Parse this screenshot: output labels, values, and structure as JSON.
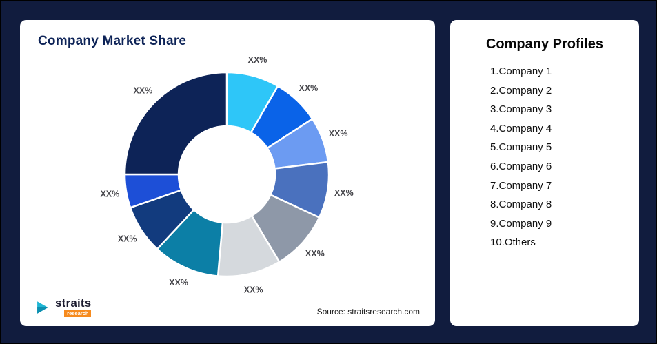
{
  "page": {
    "background_color": "#111c3e"
  },
  "left_card": {
    "title": "Company Market Share",
    "source": "Source: straitsresearch.com",
    "logo": {
      "name": "straits",
      "sub": "research",
      "mark_color": "#1fb6d4",
      "sub_bg": "#f68b1f"
    }
  },
  "right_card": {
    "title": "Company Profiles",
    "items": [
      "1.Company 1",
      "2.Company 2",
      "3.Company 3",
      "4.Company 4",
      "5.Company 5",
      "6.Company 6",
      "7.Company 7",
      "8.Company 8",
      "9.Company 9",
      "10.Others"
    ]
  },
  "chart_data": {
    "type": "pie",
    "subtype": "donut",
    "title": "Company Market Share",
    "value_label_placeholder": "XX%",
    "note": "All slice values shown as XX% placeholders; angles estimated from pixels, clockwise from 12 o'clock",
    "segments": [
      {
        "label": "XX%",
        "angle_deg": 30,
        "color": "#2ec6f8"
      },
      {
        "label": "XX%",
        "angle_deg": 27,
        "color": "#0a63e8"
      },
      {
        "label": "XX%",
        "angle_deg": 26,
        "color": "#6c9bf2"
      },
      {
        "label": "XX%",
        "angle_deg": 32,
        "color": "#4a71be"
      },
      {
        "label": "XX%",
        "angle_deg": 34,
        "color": "#8e98a8"
      },
      {
        "label": "XX%",
        "angle_deg": 36,
        "color": "#d5d9dd"
      },
      {
        "label": "XX%",
        "angle_deg": 38,
        "color": "#0c7fa6"
      },
      {
        "label": "XX%",
        "angle_deg": 28,
        "color": "#123b7e"
      },
      {
        "label": "XX%",
        "angle_deg": 19,
        "color": "#1d4fd7"
      },
      {
        "label": "XX%",
        "angle_deg": 90,
        "color": "#0d2357"
      }
    ]
  }
}
